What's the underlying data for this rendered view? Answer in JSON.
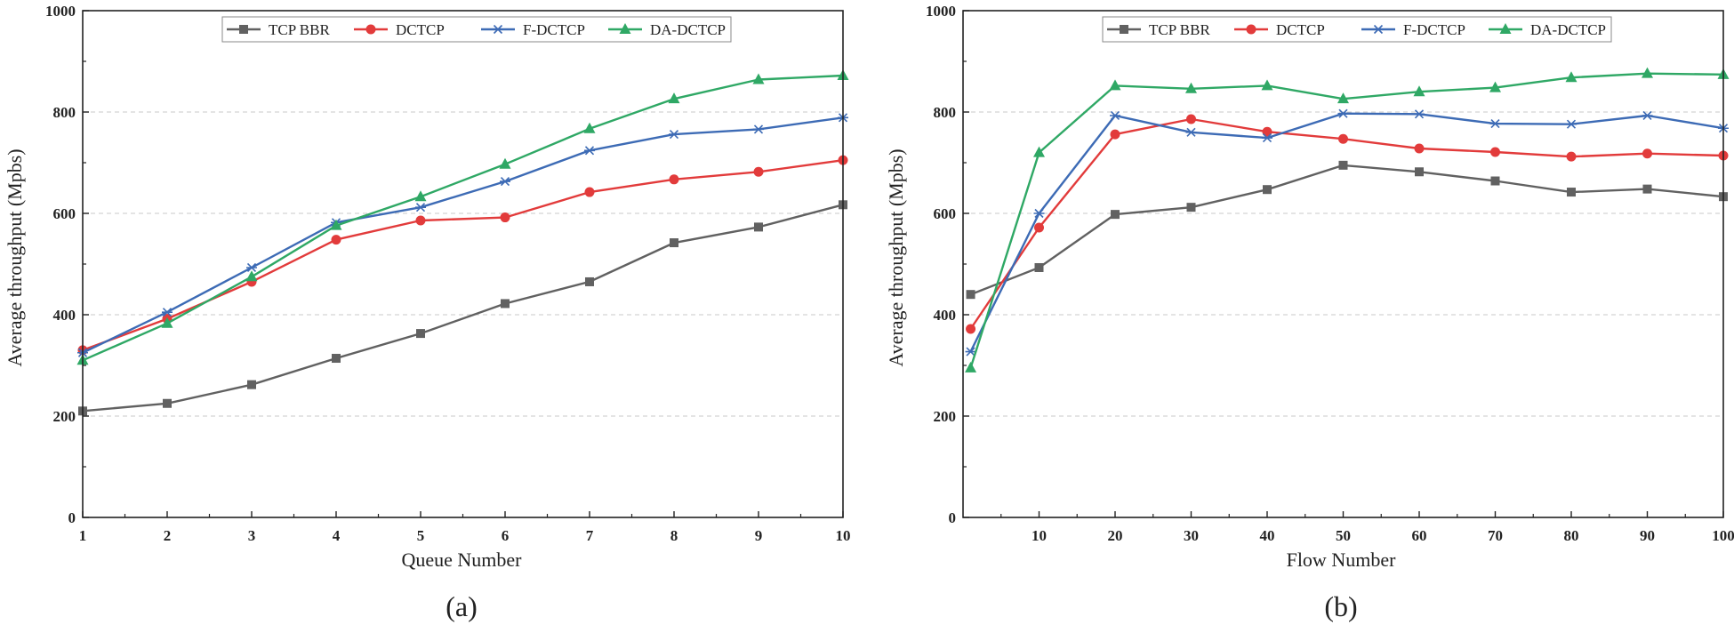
{
  "chart_data": [
    {
      "type": "line",
      "panel_label": "(a)",
      "xlabel": "Queue Number",
      "ylabel": "Average throughput (Mpbs)",
      "xlim": [
        1,
        10
      ],
      "ylim": [
        0,
        1000
      ],
      "xticks": [
        1,
        2,
        3,
        4,
        5,
        6,
        7,
        8,
        9,
        10
      ],
      "yticks": [
        0,
        200,
        400,
        600,
        800,
        1000
      ],
      "grid": "horizontal-dashed",
      "legend_position": "top-center",
      "x": [
        1,
        2,
        3,
        4,
        5,
        6,
        7,
        8,
        9,
        10
      ],
      "series": [
        {
          "name": "TCP BBR",
          "color": "#616161",
          "marker": "square",
          "values": [
            210,
            225,
            262,
            314,
            363,
            422,
            465,
            542,
            573,
            617
          ]
        },
        {
          "name": "DCTCP",
          "color": "#e23b3b",
          "marker": "circle",
          "values": [
            330,
            392,
            465,
            548,
            586,
            592,
            642,
            667,
            682,
            705
          ]
        },
        {
          "name": "F-DCTCP",
          "color": "#3d6bb5",
          "marker": "asterisk",
          "values": [
            325,
            405,
            493,
            582,
            612,
            663,
            724,
            756,
            766,
            789
          ]
        },
        {
          "name": "DA-DCTCP",
          "color": "#2fa865",
          "marker": "triangle",
          "values": [
            310,
            383,
            475,
            576,
            633,
            697,
            767,
            826,
            864,
            872
          ]
        }
      ]
    },
    {
      "type": "line",
      "panel_label": "(b)",
      "xlabel": "Flow  Number",
      "ylabel": "Average throughput (Mpbs)",
      "xlim": [
        0,
        100
      ],
      "ylim": [
        0,
        1000
      ],
      "xticks": [
        10,
        20,
        30,
        40,
        50,
        60,
        70,
        80,
        90,
        100
      ],
      "yticks": [
        0,
        200,
        400,
        600,
        800,
        1000
      ],
      "grid": "horizontal-dashed",
      "legend_position": "top-center",
      "x": [
        1,
        10,
        20,
        30,
        40,
        50,
        60,
        70,
        80,
        90,
        100
      ],
      "series": [
        {
          "name": "TCP BBR",
          "color": "#616161",
          "marker": "square",
          "values": [
            440,
            493,
            598,
            612,
            647,
            695,
            682,
            664,
            642,
            648,
            633
          ]
        },
        {
          "name": "DCTCP",
          "color": "#e23b3b",
          "marker": "circle",
          "values": [
            372,
            572,
            756,
            786,
            761,
            747,
            728,
            721,
            712,
            718,
            714
          ]
        },
        {
          "name": "F-DCTCP",
          "color": "#3d6bb5",
          "marker": "asterisk",
          "values": [
            327,
            600,
            793,
            760,
            749,
            797,
            796,
            777,
            776,
            793,
            768
          ]
        },
        {
          "name": "DA-DCTCP",
          "color": "#2fa865",
          "marker": "triangle",
          "values": [
            295,
            720,
            852,
            846,
            852,
            826,
            840,
            848,
            868,
            876,
            874
          ]
        }
      ]
    }
  ]
}
